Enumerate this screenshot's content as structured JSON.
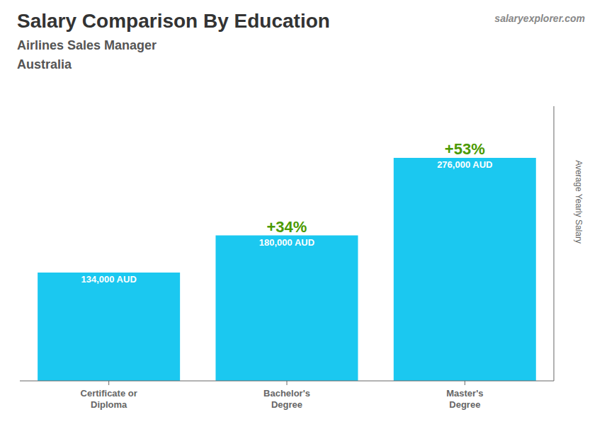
{
  "chart_data": {
    "type": "bar",
    "title": "Salary Comparison By Education",
    "subtitle": "Airlines Sales Manager",
    "annotations": {
      "country": "Australia",
      "source": "salaryexplorer.com",
      "changes": [
        "+34%",
        "+53%"
      ]
    },
    "ylabel": "Average Yearly Salary",
    "categories": [
      "Certificate or\nDiploma",
      "Bachelor's\nDegree",
      "Master's\nDegree"
    ],
    "values": [
      134000,
      180000,
      276000
    ],
    "value_labels": [
      "134,000 AUD",
      "180,000 AUD",
      "276,000 AUD"
    ],
    "data_labels": true,
    "color": "#1BC8F0",
    "ylim": [
      0,
      340000
    ],
    "tick_labels": "x",
    "grid": false
  }
}
